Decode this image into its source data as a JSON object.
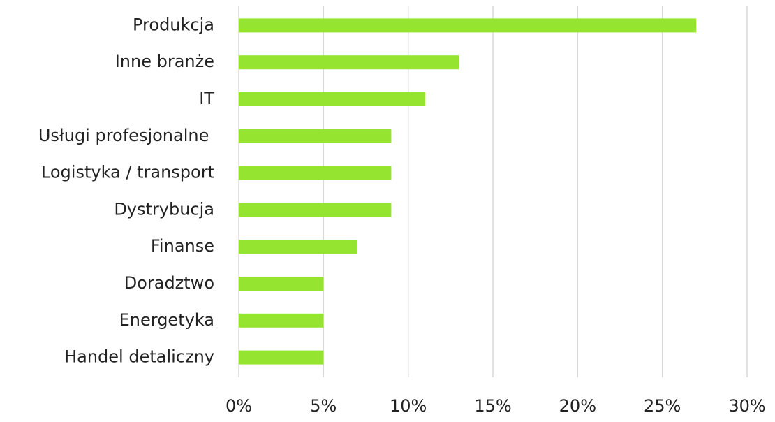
{
  "chart_data": {
    "type": "hbar",
    "categories": [
      "Produkcja",
      "Inne branże",
      "IT",
      "Usługi profesjonalne ",
      "Logistyka / transport",
      "Dystrybucja",
      "Finanse",
      "Doradztwo",
      "Energetyka",
      "Handel detaliczny"
    ],
    "values": [
      27,
      13,
      11,
      9,
      9,
      9,
      7,
      5,
      5,
      5
    ],
    "color": "#95e42f",
    "xlim": [
      0,
      30
    ],
    "xticks": [
      {
        "value": 0,
        "label": "0%"
      },
      {
        "value": 5,
        "label": "5%"
      },
      {
        "value": 10,
        "label": "10%"
      },
      {
        "value": 15,
        "label": "15%"
      },
      {
        "value": 20,
        "label": "20%"
      },
      {
        "value": 25,
        "label": "25%"
      },
      {
        "value": 30,
        "label": "30%"
      }
    ],
    "grid": true
  }
}
